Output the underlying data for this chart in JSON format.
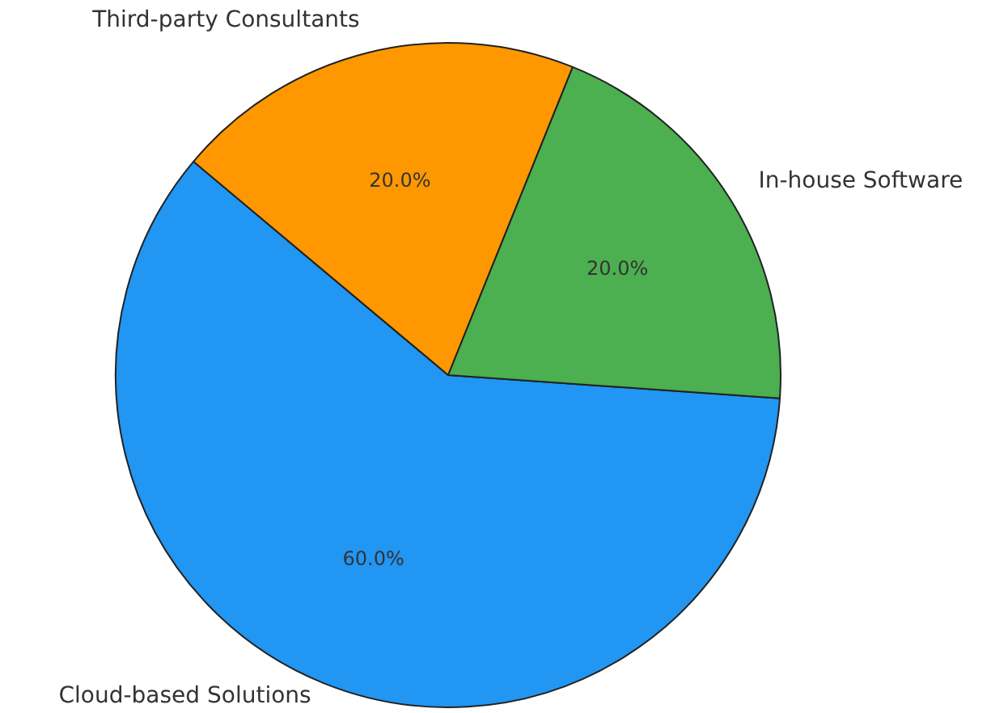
{
  "chart_data": {
    "type": "pie",
    "categories": [
      "Cloud-based Solutions",
      "Third-party Consultants",
      "In-house Software"
    ],
    "values": [
      60,
      20,
      20
    ],
    "colors": [
      "#2196f3",
      "#ff9800",
      "#4caf50"
    ],
    "value_labels": [
      "60.0%",
      "20.0%",
      "20.0%"
    ],
    "legend": false
  }
}
